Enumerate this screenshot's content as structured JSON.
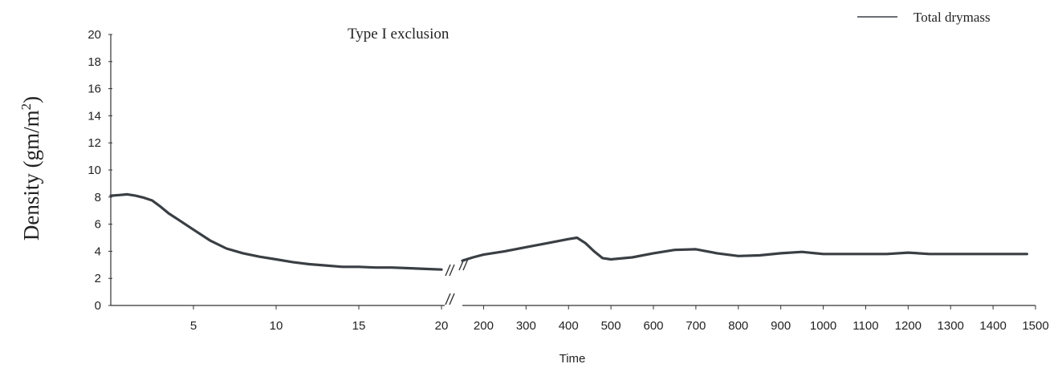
{
  "chart_data": {
    "type": "line",
    "title": "Type I exclusion",
    "xlabel": "Time",
    "ylabel": "Density (gm/m",
    "ylabel_superscript": "2",
    "ylabel_close": ")",
    "ylim": [
      0,
      20
    ],
    "y_ticks": [
      "0",
      "2",
      "4",
      "6",
      "8",
      "10",
      "12",
      "14",
      "16",
      "18",
      "20"
    ],
    "x_axis_broken": true,
    "segment1": {
      "xlim": [
        0,
        20
      ],
      "x_ticks": [
        "5",
        "10",
        "15",
        "20"
      ],
      "x": [
        0,
        0.5,
        1,
        1.5,
        2,
        2.5,
        3,
        3.5,
        4,
        5,
        6,
        7,
        8,
        9,
        10,
        11,
        12,
        13,
        14,
        15,
        16,
        17,
        18,
        19,
        20
      ],
      "y": [
        8.1,
        8.15,
        8.2,
        8.1,
        7.95,
        7.75,
        7.3,
        6.8,
        6.4,
        5.6,
        4.8,
        4.2,
        3.85,
        3.6,
        3.4,
        3.2,
        3.05,
        2.95,
        2.85,
        2.85,
        2.8,
        2.8,
        2.75,
        2.7,
        2.65
      ]
    },
    "segment2": {
      "xlim": [
        150,
        1500
      ],
      "x_ticks": [
        "200",
        "300",
        "400",
        "500",
        "600",
        "700",
        "800",
        "900",
        "1000",
        "1100",
        "1200",
        "1300",
        "1400",
        "1500"
      ],
      "x": [
        150,
        175,
        200,
        250,
        300,
        350,
        400,
        420,
        440,
        460,
        480,
        500,
        550,
        600,
        650,
        700,
        750,
        800,
        850,
        900,
        950,
        1000,
        1050,
        1100,
        1150,
        1200,
        1250,
        1300,
        1350,
        1400,
        1450,
        1480
      ],
      "y": [
        3.3,
        3.55,
        3.75,
        4.0,
        4.3,
        4.6,
        4.9,
        5.0,
        4.6,
        4.0,
        3.5,
        3.4,
        3.55,
        3.85,
        4.1,
        4.15,
        3.85,
        3.65,
        3.7,
        3.85,
        3.95,
        3.8,
        3.8,
        3.8,
        3.8,
        3.9,
        3.8,
        3.8,
        3.8,
        3.8,
        3.8,
        3.8
      ]
    },
    "series": [
      {
        "name": "Total drymass",
        "color": "#3a3f44"
      }
    ],
    "legend_position": "top-right",
    "grid": false
  }
}
